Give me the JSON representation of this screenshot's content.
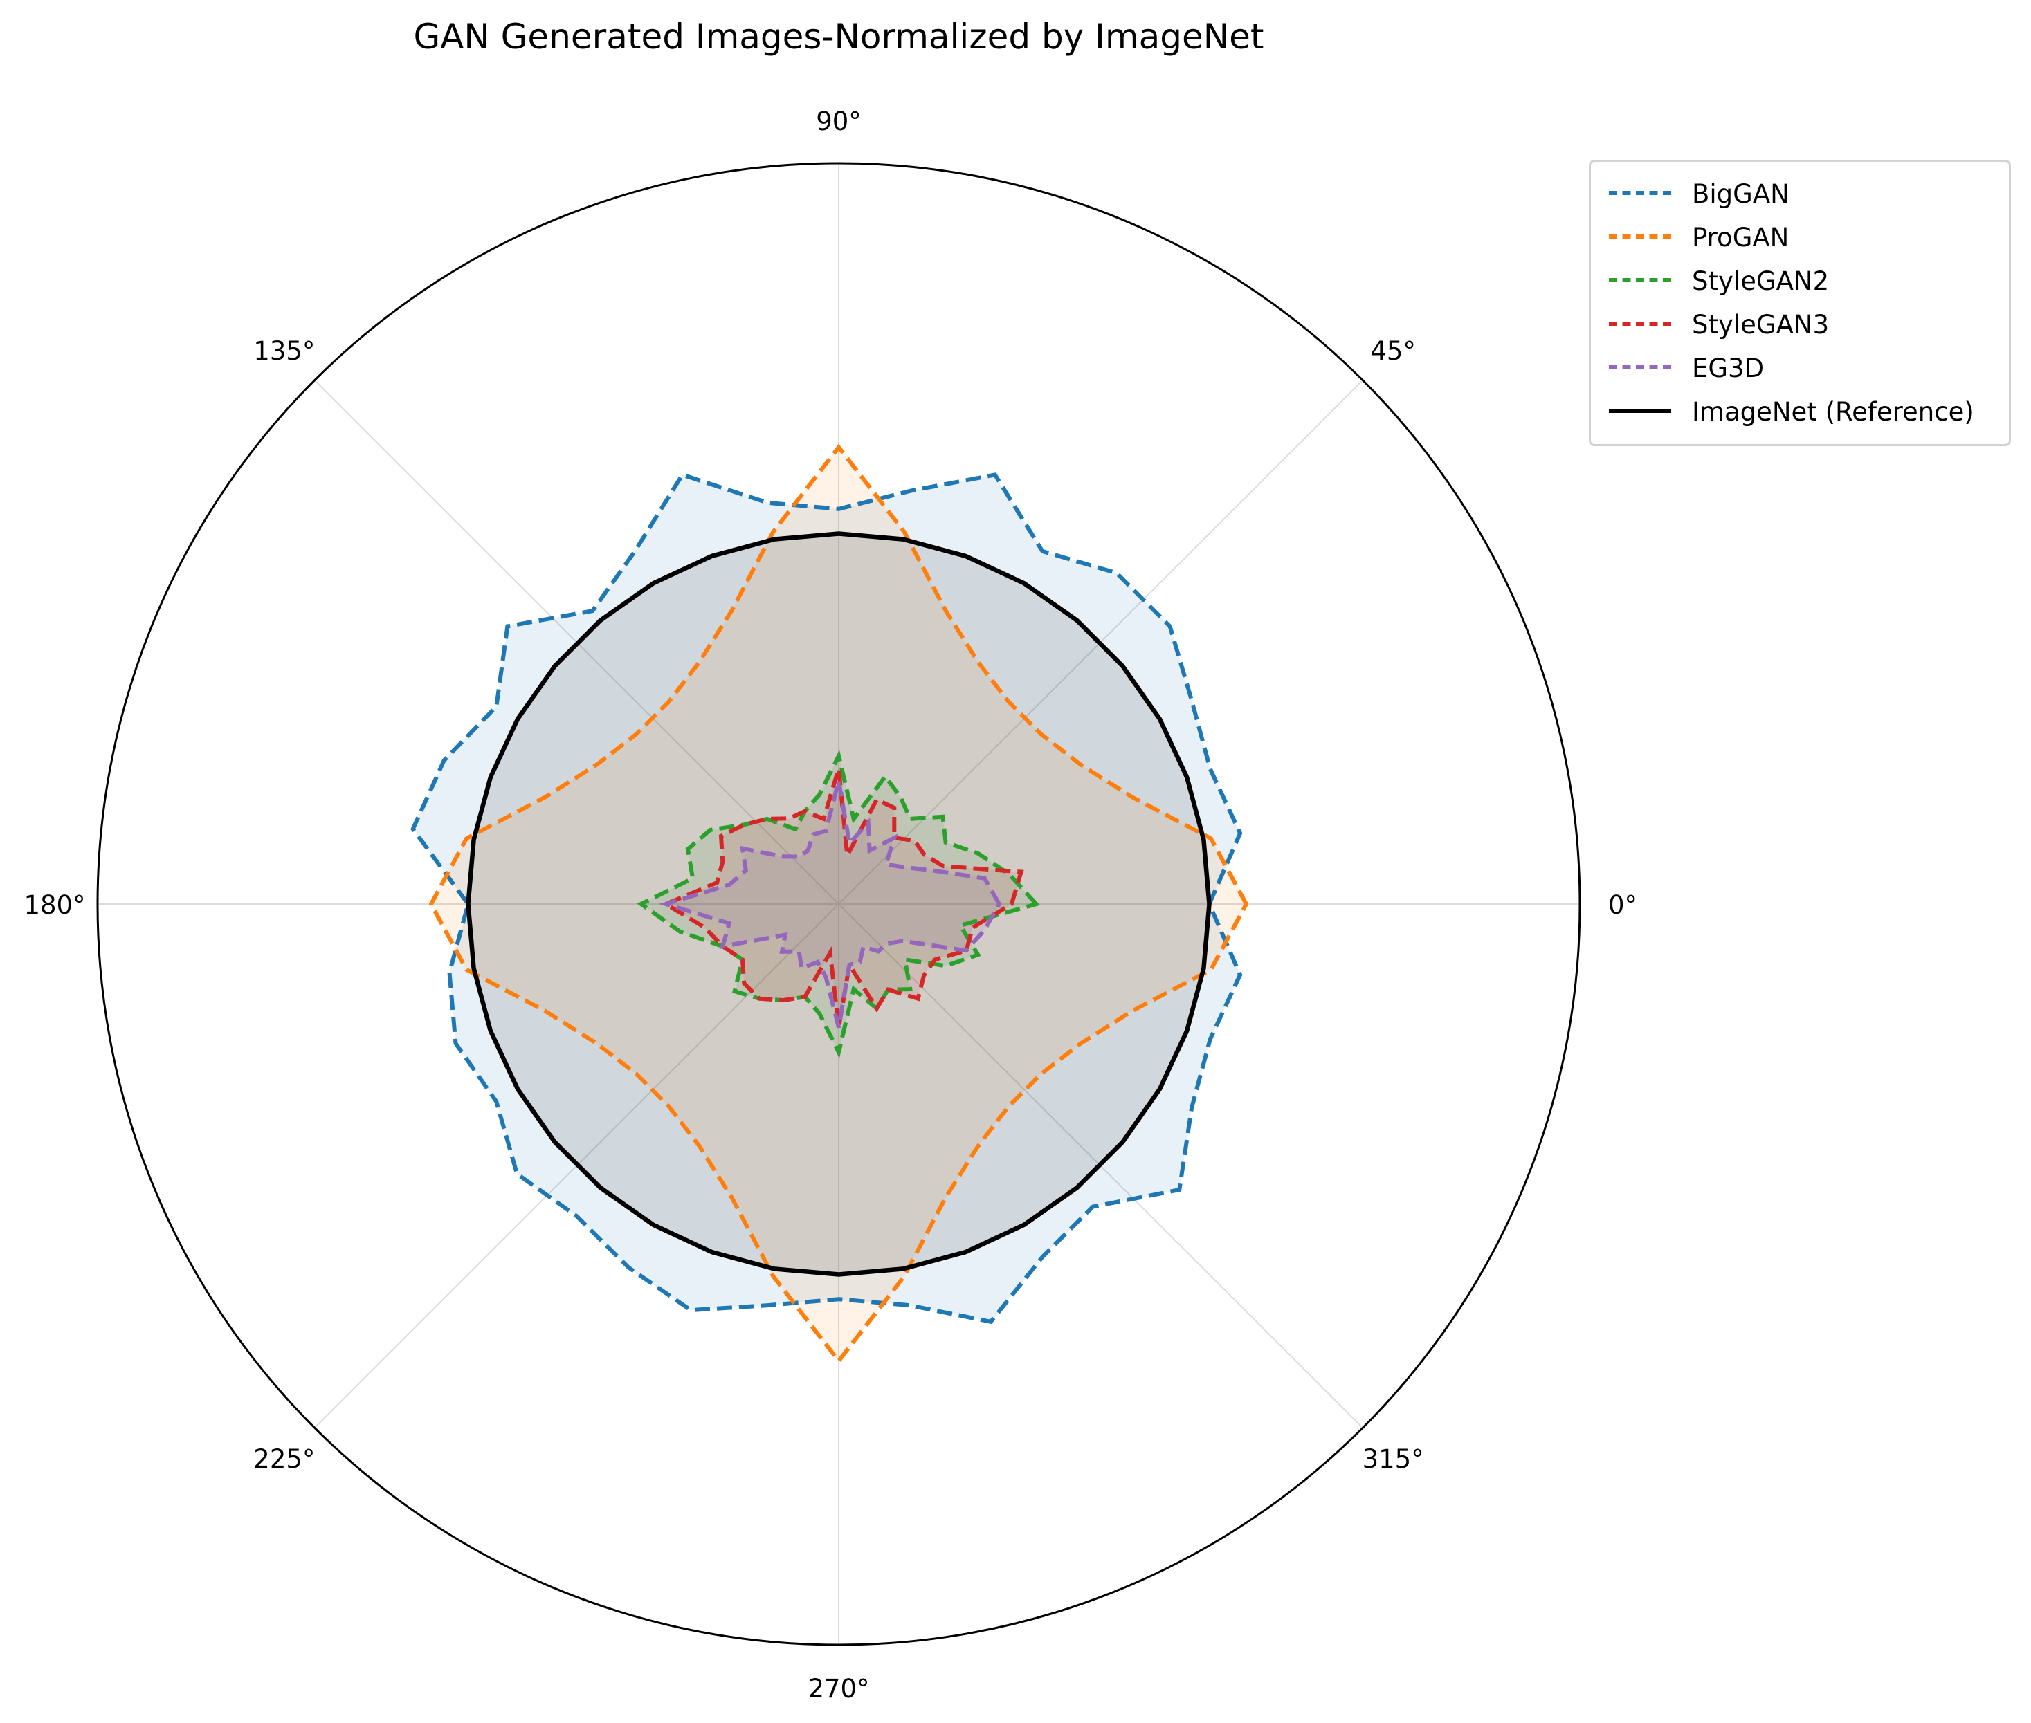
{
  "chart_data": {
    "type": "polar-line",
    "title": "GAN Generated Images-Normalized by ImageNet",
    "angle_ticks": [
      "0°",
      "45°",
      "90°",
      "135°",
      "180°",
      "225°",
      "270°",
      "315°"
    ],
    "rlim": [
      0,
      6
    ],
    "grid": true,
    "legend_position": "upper-right-outside",
    "angles_deg": [
      0,
      10,
      20,
      30,
      40,
      50,
      60,
      70,
      80,
      90,
      100,
      110,
      120,
      130,
      140,
      150,
      160,
      170,
      180,
      190,
      200,
      210,
      220,
      230,
      240,
      250,
      260,
      270,
      280,
      290,
      300,
      310,
      320,
      330,
      340,
      350
    ],
    "series": [
      {
        "name": "BigGAN",
        "color": "#1f77b4",
        "style": "dashed",
        "fill": true,
        "values": [
          3.0,
          3.3,
          3.2,
          3.3,
          3.5,
          3.5,
          3.3,
          3.7,
          3.4,
          3.2,
          3.3,
          3.7,
          3.3,
          3.1,
          3.5,
          3.2,
          3.4,
          3.5,
          3.0,
          3.2,
          3.3,
          3.2,
          3.4,
          3.3,
          3.4,
          3.5,
          3.3,
          3.2,
          3.3,
          3.6,
          3.3,
          3.2,
          3.6,
          3.3,
          3.2,
          3.3
        ]
      },
      {
        "name": "ProGAN",
        "color": "#ff7f0e",
        "style": "dashed",
        "fill": true,
        "values": [
          3.3,
          3.06,
          2.53,
          2.26,
          2.14,
          2.14,
          2.26,
          2.53,
          3.06,
          3.7,
          3.06,
          2.53,
          2.26,
          2.14,
          2.14,
          2.26,
          2.53,
          3.06,
          3.3,
          3.06,
          2.53,
          2.26,
          2.14,
          2.14,
          2.26,
          2.53,
          3.06,
          3.7,
          3.06,
          2.53,
          2.26,
          2.14,
          2.14,
          2.26,
          2.53,
          3.06
        ]
      },
      {
        "name": "StyleGAN2",
        "color": "#2ca02c",
        "style": "dashed",
        "fill": true,
        "values": [
          1.6,
          1.4,
          1.2,
          1.0,
          1.1,
          0.9,
          1.0,
          1.1,
          0.7,
          1.2,
          0.9,
          0.8,
          0.7,
          0.9,
          1.0,
          1.2,
          1.3,
          1.2,
          1.6,
          1.3,
          1.0,
          0.9,
          1.1,
          1.0,
          0.9,
          0.8,
          0.9,
          1.2,
          0.7,
          0.9,
          0.8,
          0.9,
          0.7,
          1.0,
          1.2,
          1.0
        ]
      },
      {
        "name": "StyleGAN3",
        "color": "#d62728",
        "style": "dashed",
        "fill": true,
        "values": [
          1.4,
          1.5,
          0.9,
          0.8,
          0.8,
          0.7,
          0.9,
          0.9,
          0.4,
          1.1,
          0.7,
          0.8,
          0.8,
          0.9,
          1.0,
          1.1,
          1.0,
          1.0,
          1.4,
          1.1,
          1.0,
          0.9,
          1.0,
          1.0,
          0.9,
          0.8,
          0.4,
          1.0,
          0.5,
          0.9,
          0.8,
          1.0,
          0.9,
          0.9,
          1.1,
          1.1
        ]
      },
      {
        "name": "EG3D",
        "color": "#9467bd",
        "style": "dashed",
        "fill": true,
        "values": [
          1.3,
          1.2,
          0.8,
          0.6,
          0.5,
          0.7,
          0.5,
          0.7,
          0.5,
          1.0,
          0.6,
          0.6,
          0.5,
          0.5,
          0.6,
          0.9,
          0.8,
          0.9,
          1.4,
          0.9,
          1.0,
          0.5,
          0.6,
          0.5,
          0.6,
          0.5,
          0.6,
          1.0,
          0.5,
          0.5,
          0.4,
          0.5,
          0.5,
          0.6,
          1.1,
          1.2
        ]
      },
      {
        "name": "ImageNet (Reference)",
        "color": "#000000",
        "style": "solid",
        "fill": true,
        "values": [
          3.0,
          3.0,
          3.0,
          3.0,
          3.0,
          3.0,
          3.0,
          3.0,
          3.0,
          3.0,
          3.0,
          3.0,
          3.0,
          3.0,
          3.0,
          3.0,
          3.0,
          3.0,
          3.0,
          3.0,
          3.0,
          3.0,
          3.0,
          3.0,
          3.0,
          3.0,
          3.0,
          3.0,
          3.0,
          3.0,
          3.0,
          3.0,
          3.0,
          3.0,
          3.0,
          3.0
        ]
      }
    ]
  }
}
